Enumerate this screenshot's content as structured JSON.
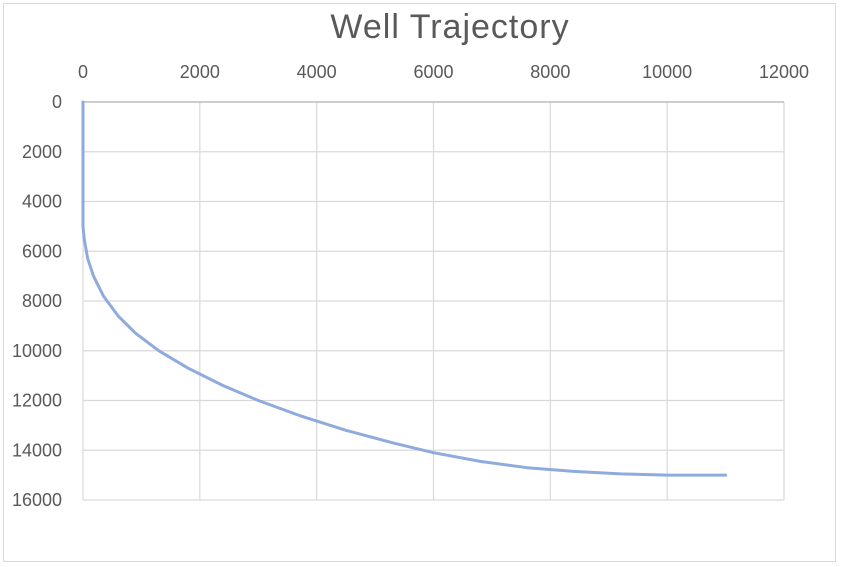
{
  "chart_data": {
    "type": "line",
    "title": "Well Trajectory",
    "xlabel": "",
    "ylabel": "",
    "x_axis_position": "top",
    "y_axis_reversed": true,
    "xlim": [
      0,
      12000
    ],
    "ylim": [
      0,
      16000
    ],
    "x_ticks": [
      "0",
      "2000",
      "4000",
      "6000",
      "8000",
      "10000",
      "12000"
    ],
    "y_ticks": [
      "0",
      "2000",
      "4000",
      "6000",
      "8000",
      "10000",
      "12000",
      "14000",
      "16000"
    ],
    "grid": true,
    "legend": "none",
    "series": [
      {
        "color": "#8faadc",
        "x": [
          0,
          0,
          0,
          0,
          20,
          80,
          180,
          350,
          600,
          900,
          1300,
          1800,
          2400,
          3000,
          3700,
          4500,
          5300,
          6000,
          6800,
          7600,
          8400,
          9200,
          10000,
          11000
        ],
        "y": [
          0,
          2000,
          4000,
          5000,
          5500,
          6300,
          7000,
          7800,
          8600,
          9300,
          10000,
          10700,
          11400,
          12000,
          12600,
          13200,
          13700,
          14100,
          14450,
          14700,
          14850,
          14950,
          15000,
          15000
        ]
      }
    ]
  },
  "colors": {
    "grid": "#d9d9d9",
    "axis": "#bfbfbf",
    "text": "#595959",
    "series": "#8faadc"
  }
}
